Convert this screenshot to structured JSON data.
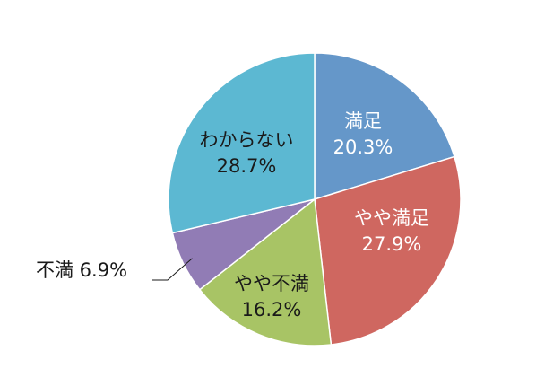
{
  "chart_data": {
    "type": "pie",
    "title": "",
    "slices": [
      {
        "name": "満足",
        "value": 20.3,
        "label": "20.3%",
        "color": "#6597c9",
        "text_color": "#ffffff"
      },
      {
        "name": "やや満足",
        "value": 27.9,
        "label": "27.9%",
        "color": "#cf6760",
        "text_color": "#ffffff"
      },
      {
        "name": "やや不満",
        "value": 16.2,
        "label": "16.2%",
        "color": "#a8c465",
        "text_color": "#1a1a1a"
      },
      {
        "name": "不満",
        "value": 6.9,
        "label": "6.9%",
        "color": "#917cb5",
        "text_color": "#1a1a1a"
      },
      {
        "name": "わからない",
        "value": 28.7,
        "label": "28.7%",
        "color": "#5cb8d2",
        "text_color": "#1a1a1a"
      }
    ],
    "start_angle_deg": 0,
    "direction": "clockwise"
  }
}
